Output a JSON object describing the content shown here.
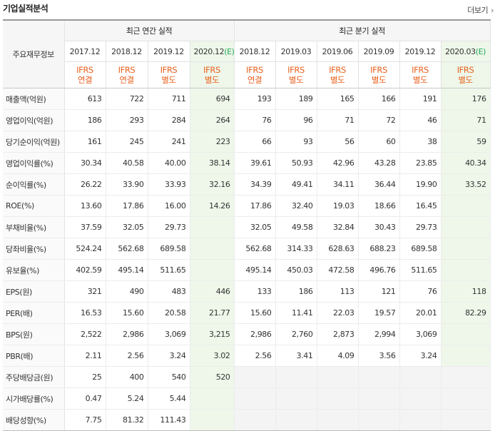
{
  "header": {
    "title": "기업실적분석",
    "more_label": "더보기"
  },
  "table": {
    "row_header_label": "주요재무정보",
    "groups": {
      "annual": "최근 연간 실적",
      "quarterly": "최근 분기 실적"
    },
    "periods": [
      {
        "label": "2017.12",
        "std": "IFRS",
        "type": "연결"
      },
      {
        "label": "2018.12",
        "std": "IFRS",
        "type": "연결"
      },
      {
        "label": "2019.12",
        "std": "IFRS",
        "type": "별도"
      },
      {
        "label": "2020.12",
        "est": "(E)",
        "std": "IFRS",
        "type": "별도"
      },
      {
        "label": "2018.12",
        "std": "IFRS",
        "type": "연결"
      },
      {
        "label": "2019.03",
        "std": "IFRS",
        "type": "별도"
      },
      {
        "label": "2019.06",
        "std": "IFRS",
        "type": "별도"
      },
      {
        "label": "2019.09",
        "std": "IFRS",
        "type": "별도"
      },
      {
        "label": "2019.12",
        "std": "IFRS",
        "type": "별도"
      },
      {
        "label": "2020.03",
        "est": "(E)",
        "std": "IFRS",
        "type": "별도"
      }
    ],
    "rows": [
      {
        "label": "매출액(억원)",
        "values": [
          "613",
          "722",
          "711",
          "694",
          "193",
          "189",
          "165",
          "166",
          "191",
          "176"
        ]
      },
      {
        "label": "영업이익(억원)",
        "values": [
          "186",
          "293",
          "284",
          "264",
          "76",
          "96",
          "71",
          "72",
          "46",
          "71"
        ]
      },
      {
        "label": "당기순이익(억원)",
        "values": [
          "161",
          "245",
          "241",
          "223",
          "66",
          "93",
          "56",
          "60",
          "38",
          "59"
        ]
      },
      {
        "label": "영업이익률(%)",
        "values": [
          "30.34",
          "40.58",
          "40.00",
          "38.14",
          "39.61",
          "50.93",
          "42.96",
          "43.28",
          "23.85",
          "40.34"
        ]
      },
      {
        "label": "순이익률(%)",
        "values": [
          "26.22",
          "33.90",
          "33.93",
          "32.16",
          "34.39",
          "49.41",
          "34.11",
          "36.44",
          "19.90",
          "33.52"
        ]
      },
      {
        "label": "ROE(%)",
        "values": [
          "13.60",
          "17.86",
          "16.00",
          "14.26",
          "17.86",
          "32.40",
          "19.03",
          "18.66",
          "16.45",
          ""
        ]
      },
      {
        "label": "부채비율(%)",
        "values": [
          "37.59",
          "32.05",
          "29.73",
          "",
          "32.05",
          "49.58",
          "32.84",
          "30.43",
          "29.73",
          ""
        ]
      },
      {
        "label": "당좌비율(%)",
        "values": [
          "524.24",
          "562.68",
          "689.58",
          "",
          "562.68",
          "314.33",
          "628.63",
          "688.23",
          "689.58",
          ""
        ]
      },
      {
        "label": "유보율(%)",
        "values": [
          "402.59",
          "495.14",
          "511.65",
          "",
          "495.14",
          "450.03",
          "472.58",
          "496.76",
          "511.65",
          ""
        ]
      },
      {
        "label": "EPS(원)",
        "values": [
          "321",
          "490",
          "483",
          "446",
          "133",
          "186",
          "113",
          "121",
          "76",
          "118"
        ]
      },
      {
        "label": "PER(배)",
        "values": [
          "16.53",
          "15.60",
          "20.58",
          "21.77",
          "15.60",
          "11.41",
          "22.03",
          "19.57",
          "20.01",
          "82.29"
        ]
      },
      {
        "label": "BPS(원)",
        "values": [
          "2,522",
          "2,986",
          "3,069",
          "3,215",
          "2,986",
          "2,760",
          "2,873",
          "2,994",
          "3,069",
          ""
        ]
      },
      {
        "label": "PBR(배)",
        "values": [
          "2.11",
          "2.56",
          "3.24",
          "3.02",
          "2.56",
          "3.41",
          "4.09",
          "3.56",
          "3.24",
          ""
        ]
      },
      {
        "label": "주당배당금(원)",
        "values": [
          "25",
          "400",
          "540",
          "520",
          "",
          "",
          "",
          "",
          "",
          ""
        ]
      },
      {
        "label": "시가배당률(%)",
        "values": [
          "0.47",
          "5.24",
          "5.44",
          "",
          "",
          "",
          "",
          "",
          "",
          ""
        ]
      },
      {
        "label": "배당성향(%)",
        "values": [
          "7.75",
          "81.32",
          "111.43",
          "",
          "",
          "",
          "",
          "",
          "",
          ""
        ]
      }
    ]
  }
}
